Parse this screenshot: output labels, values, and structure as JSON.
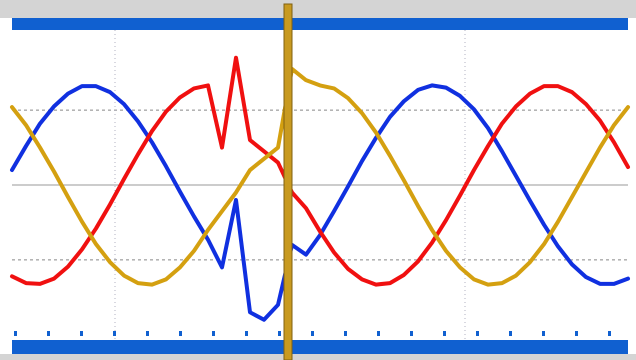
{
  "chart_data": {
    "type": "line",
    "x": [
      0,
      14,
      28,
      42,
      56,
      70,
      84,
      98,
      112,
      126,
      140,
      154,
      168,
      182,
      196,
      210,
      224,
      238,
      252,
      266,
      280,
      294,
      308,
      322,
      336,
      350,
      364,
      378,
      392,
      406,
      420,
      434,
      448,
      462,
      476,
      490,
      504,
      518,
      532,
      546,
      560,
      574,
      588,
      602,
      616
    ],
    "series": [
      {
        "color": "#1030e0",
        "values": [
          0.2,
          0.52,
          0.82,
          1.05,
          1.22,
          1.32,
          1.32,
          1.24,
          1.08,
          0.85,
          0.57,
          0.25,
          -0.09,
          -0.42,
          -0.73,
          -1.1,
          -0.2,
          -1.7,
          -1.8,
          -1.6,
          -0.8,
          -0.93,
          -0.67,
          -0.35,
          -0.02,
          0.32,
          0.63,
          0.91,
          1.12,
          1.27,
          1.33,
          1.3,
          1.19,
          1.01,
          0.76,
          0.45,
          0.12,
          -0.21,
          -0.53,
          -0.82,
          -1.06,
          -1.23,
          -1.32,
          -1.32,
          -1.25
        ]
      },
      {
        "color": "#f01010",
        "values": [
          -1.22,
          -1.31,
          -1.32,
          -1.25,
          -1.09,
          -0.86,
          -0.58,
          -0.26,
          0.08,
          0.41,
          0.72,
          0.98,
          1.17,
          1.29,
          1.33,
          0.5,
          1.7,
          0.6,
          0.45,
          0.3,
          -0.1,
          -0.31,
          -0.62,
          -0.9,
          -1.12,
          -1.26,
          -1.33,
          -1.31,
          -1.2,
          -1.02,
          -0.77,
          -0.47,
          -0.14,
          0.2,
          0.52,
          0.82,
          1.05,
          1.22,
          1.32,
          1.32,
          1.24,
          1.08,
          0.86,
          0.57,
          0.24
        ]
      },
      {
        "color": "#d4a010",
        "values": [
          1.04,
          0.8,
          0.5,
          0.18,
          -0.16,
          -0.49,
          -0.79,
          -1.03,
          -1.21,
          -1.31,
          -1.33,
          -1.26,
          -1.1,
          -0.88,
          -0.6,
          -0.35,
          -0.1,
          0.2,
          0.35,
          0.5,
          1.55,
          1.4,
          1.33,
          1.29,
          1.16,
          0.96,
          0.7,
          0.39,
          0.06,
          -0.28,
          -0.6,
          -0.88,
          -1.1,
          -1.26,
          -1.33,
          -1.31,
          -1.21,
          -1.03,
          -0.79,
          -0.49,
          -0.16,
          0.17,
          0.5,
          0.8,
          1.04
        ]
      }
    ],
    "xlim": [
      0,
      616
    ],
    "xticks": [
      103,
      453
    ],
    "ylim": [
      -2.07,
      2.07
    ],
    "yticks": [
      -1,
      0,
      1
    ],
    "grid": true
  }
}
